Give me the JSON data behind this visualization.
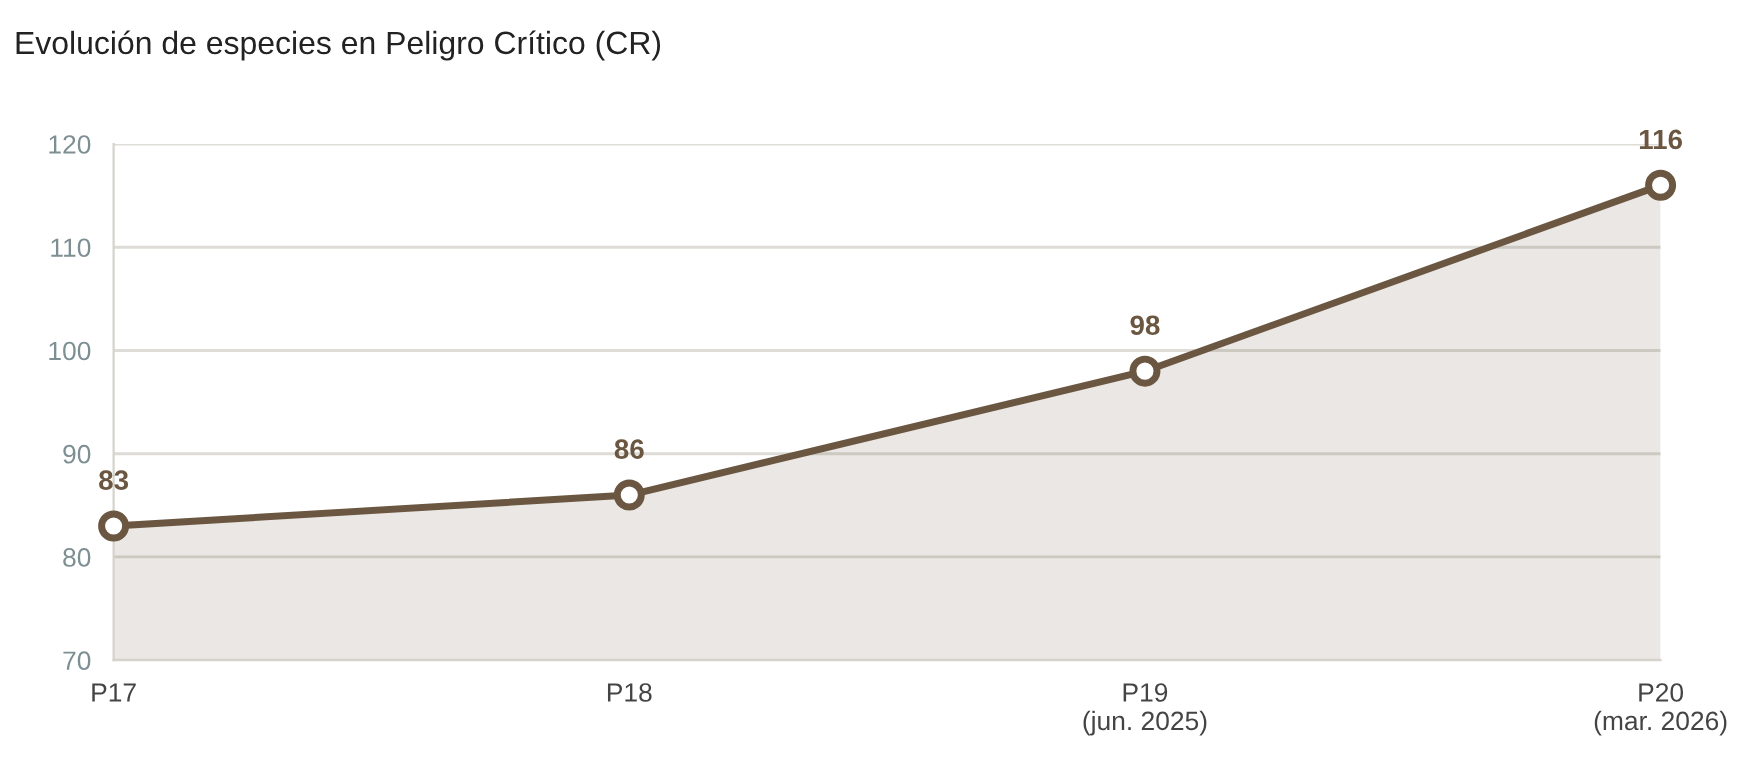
{
  "chart_data": {
    "type": "area",
    "title": "Evolución de especies en Peligro Crítico (CR)",
    "categories": [
      "P17",
      "P18",
      "P19\n(jun. 2025)",
      "P20\n(mar. 2026)"
    ],
    "series": [
      {
        "color": "#6b5741",
        "values": [
          83,
          86,
          98,
          116
        ]
      }
    ],
    "ylim": [
      70,
      120
    ],
    "yticks": [
      70,
      80,
      90,
      100,
      110,
      120
    ],
    "grid": "y",
    "marker": "circle",
    "line_style": "solid",
    "data_labels": true,
    "legend": false
  }
}
